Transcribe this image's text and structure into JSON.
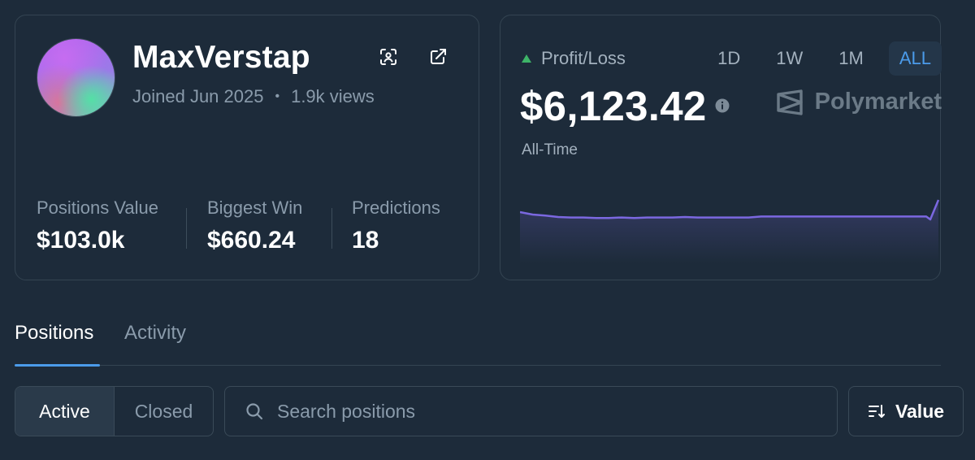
{
  "profile": {
    "username": "MaxVerstap",
    "joined": "Joined Jun 2025",
    "separator": "•",
    "views": "1.9k views",
    "stats": [
      {
        "label": "Positions Value",
        "value": "$103.0k"
      },
      {
        "label": "Biggest Win",
        "value": "$660.24"
      },
      {
        "label": "Predictions",
        "value": "18"
      }
    ]
  },
  "pnl": {
    "title": "Profit/Loss",
    "value": "$6,123.42",
    "period": "All-Time",
    "brand": "Polymarket",
    "ranges": [
      "1D",
      "1W",
      "1M",
      "ALL"
    ],
    "active_range": "ALL",
    "up_color": "#3db468",
    "line_color": "#7b68e0",
    "series": [
      0.25,
      0.3,
      0.32,
      0.35,
      0.36,
      0.36,
      0.37,
      0.37,
      0.36,
      0.37,
      0.36,
      0.36,
      0.36,
      0.35,
      0.36,
      0.36,
      0.36,
      0.36,
      0.36,
      0.34,
      0.34,
      0.34,
      0.34,
      0.34,
      0.34,
      0.34,
      0.34,
      0.34,
      0.34,
      0.34,
      0.34,
      0.34,
      0.34,
      0.4,
      0.2,
      0.0
    ]
  },
  "tabs": {
    "positions": "Positions",
    "activity": "Activity"
  },
  "filters": {
    "active": "Active",
    "closed": "Closed"
  },
  "search": {
    "placeholder": "Search positions"
  },
  "sort": {
    "label": "Value"
  },
  "colors": {
    "background": "#1d2b3a",
    "accent": "#4b9bea"
  }
}
